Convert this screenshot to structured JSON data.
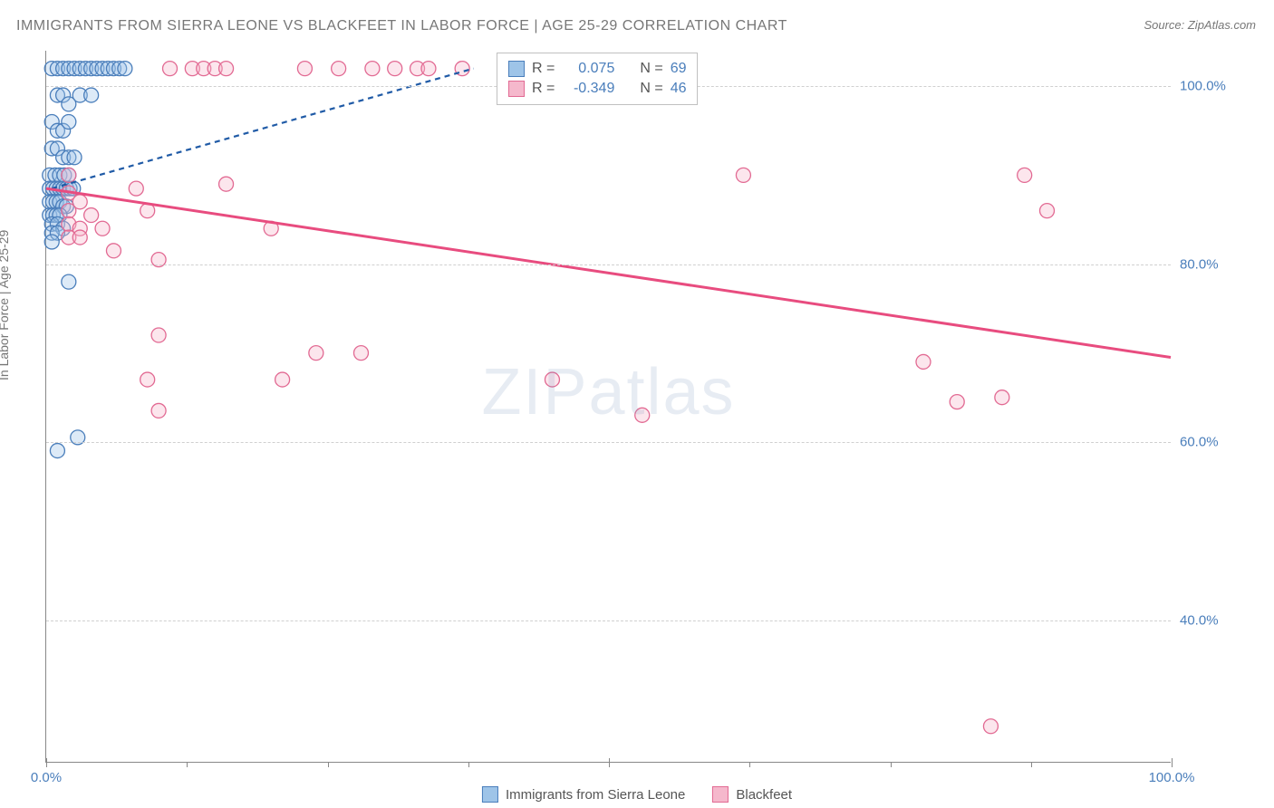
{
  "title": "IMMIGRANTS FROM SIERRA LEONE VS BLACKFEET IN LABOR FORCE | AGE 25-29 CORRELATION CHART",
  "source": "Source: ZipAtlas.com",
  "ylabel": "In Labor Force | Age 25-29",
  "watermark": "ZIPatlas",
  "chart": {
    "type": "scatter",
    "xlim": [
      0,
      100
    ],
    "ylim": [
      24,
      104
    ],
    "y_ticks": [
      40,
      60,
      80,
      100
    ],
    "y_tick_labels": [
      "40.0%",
      "60.0%",
      "80.0%",
      "100.0%"
    ],
    "x_ticks": [
      0,
      50,
      100
    ],
    "x_tick_labels": [
      "0.0%",
      "",
      "100.0%"
    ],
    "x_minor_ticks": [
      12.5,
      25,
      37.5,
      62.5,
      75,
      87.5
    ],
    "background_color": "#ffffff",
    "grid_color": "#d0d0d0",
    "marker_size": 8,
    "marker_opacity": 0.35,
    "series": [
      {
        "name": "Immigrants from Sierra Leone",
        "color_fill": "#9ec4e8",
        "color_stroke": "#4a7ebb",
        "line_color": "#1f5aa6",
        "line_width": 2.2,
        "line_dash": "6,5",
        "trend": [
          [
            0.5,
            88.5
          ],
          [
            38,
            102
          ]
        ],
        "points": [
          [
            0.5,
            102
          ],
          [
            1,
            102
          ],
          [
            1.5,
            102
          ],
          [
            2,
            102
          ],
          [
            2.5,
            102
          ],
          [
            3,
            102
          ],
          [
            3.5,
            102
          ],
          [
            4,
            102
          ],
          [
            4.5,
            102
          ],
          [
            5,
            102
          ],
          [
            5.5,
            102
          ],
          [
            6,
            102
          ],
          [
            6.5,
            102
          ],
          [
            7,
            102
          ],
          [
            1,
            99
          ],
          [
            1.5,
            99
          ],
          [
            2,
            98
          ],
          [
            3,
            99
          ],
          [
            4,
            99
          ],
          [
            0.5,
            96
          ],
          [
            1,
            95
          ],
          [
            1.5,
            95
          ],
          [
            2,
            96
          ],
          [
            0.5,
            93
          ],
          [
            1,
            93
          ],
          [
            1.5,
            92
          ],
          [
            2,
            92
          ],
          [
            2.5,
            92
          ],
          [
            0.3,
            90
          ],
          [
            0.8,
            90
          ],
          [
            1.2,
            90
          ],
          [
            1.6,
            90
          ],
          [
            2,
            90
          ],
          [
            0.3,
            88.5
          ],
          [
            0.6,
            88.5
          ],
          [
            0.9,
            88.5
          ],
          [
            1.2,
            88.5
          ],
          [
            1.5,
            88.5
          ],
          [
            1.8,
            88.5
          ],
          [
            2.1,
            88.5
          ],
          [
            2.4,
            88.5
          ],
          [
            0.3,
            87
          ],
          [
            0.6,
            87
          ],
          [
            0.9,
            87
          ],
          [
            1.2,
            87
          ],
          [
            1.5,
            86.5
          ],
          [
            1.8,
            86.5
          ],
          [
            0.3,
            85.5
          ],
          [
            0.6,
            85.5
          ],
          [
            0.9,
            85.5
          ],
          [
            1.2,
            85.5
          ],
          [
            0.5,
            84.5
          ],
          [
            1,
            84.5
          ],
          [
            1.5,
            84
          ],
          [
            0.5,
            83.5
          ],
          [
            1,
            83.5
          ],
          [
            0.5,
            82.5
          ],
          [
            2,
            78
          ],
          [
            1,
            59
          ],
          [
            2.8,
            60.5
          ]
        ]
      },
      {
        "name": "Blackfeet",
        "color_fill": "#f5b8cc",
        "color_stroke": "#e26a93",
        "line_color": "#e84c7f",
        "line_width": 3,
        "line_dash": "",
        "trend": [
          [
            0,
            88.5
          ],
          [
            100,
            69.5
          ]
        ],
        "points": [
          [
            11,
            102
          ],
          [
            13,
            102
          ],
          [
            14,
            102
          ],
          [
            15,
            102
          ],
          [
            16,
            102
          ],
          [
            23,
            102
          ],
          [
            26,
            102
          ],
          [
            29,
            102
          ],
          [
            31,
            102
          ],
          [
            33,
            102
          ],
          [
            34,
            102
          ],
          [
            37,
            102
          ],
          [
            2,
            90
          ],
          [
            16,
            89
          ],
          [
            2,
            88
          ],
          [
            3,
            87
          ],
          [
            8,
            88.5
          ],
          [
            2,
            86
          ],
          [
            4,
            85.5
          ],
          [
            9,
            86
          ],
          [
            2,
            84.5
          ],
          [
            3,
            84
          ],
          [
            5,
            84
          ],
          [
            20,
            84
          ],
          [
            2,
            83
          ],
          [
            3,
            83
          ],
          [
            6,
            81.5
          ],
          [
            10,
            80.5
          ],
          [
            10,
            72
          ],
          [
            24,
            70
          ],
          [
            28,
            70
          ],
          [
            9,
            67
          ],
          [
            21,
            67
          ],
          [
            10,
            63.5
          ],
          [
            45,
            67
          ],
          [
            62,
            90
          ],
          [
            78,
            69
          ],
          [
            85,
            65
          ],
          [
            87,
            90
          ],
          [
            89,
            86
          ],
          [
            81,
            64.5
          ],
          [
            84,
            28
          ],
          [
            53,
            63
          ]
        ]
      }
    ]
  },
  "stats_legend": {
    "rows": [
      {
        "swatch_fill": "#9ec4e8",
        "swatch_stroke": "#4a7ebb",
        "r_label": "R =",
        "r_value": "0.075",
        "n_label": "N =",
        "n_value": "69"
      },
      {
        "swatch_fill": "#f5b8cc",
        "swatch_stroke": "#e26a93",
        "r_label": "R =",
        "r_value": "-0.349",
        "n_label": "N =",
        "n_value": "46"
      }
    ]
  },
  "bottom_legend": [
    {
      "swatch_fill": "#9ec4e8",
      "swatch_stroke": "#4a7ebb",
      "label": "Immigrants from Sierra Leone"
    },
    {
      "swatch_fill": "#f5b8cc",
      "swatch_stroke": "#e26a93",
      "label": "Blackfeet"
    }
  ]
}
